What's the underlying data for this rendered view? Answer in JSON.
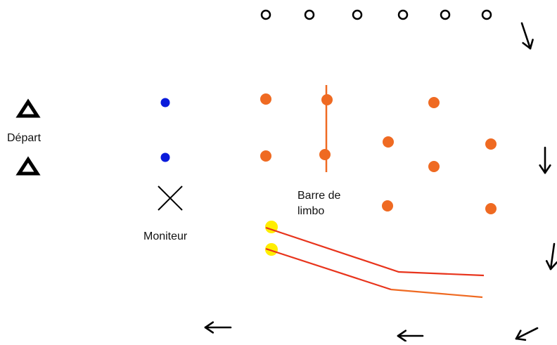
{
  "labels": {
    "depart": "Départ",
    "barre_line1": "Barre de",
    "barre_line2": "limbo",
    "moniteur": "Moniteur"
  },
  "colors": {
    "background": "#ffffff",
    "orange": "#ef6a22",
    "blue": "#0a1bdb",
    "yellow": "#ffee00",
    "red_line": "#e8341c",
    "ink": "#000000"
  },
  "element_types": {
    "start_marker": "triangle",
    "ring_marker": "small-circle-outline",
    "orange_marker": "orange-dot",
    "blue_marker": "blue-dot",
    "yellow_marker": "yellow-dot",
    "monitor_marker": "x-cross",
    "direction_marker": "arrow"
  }
}
